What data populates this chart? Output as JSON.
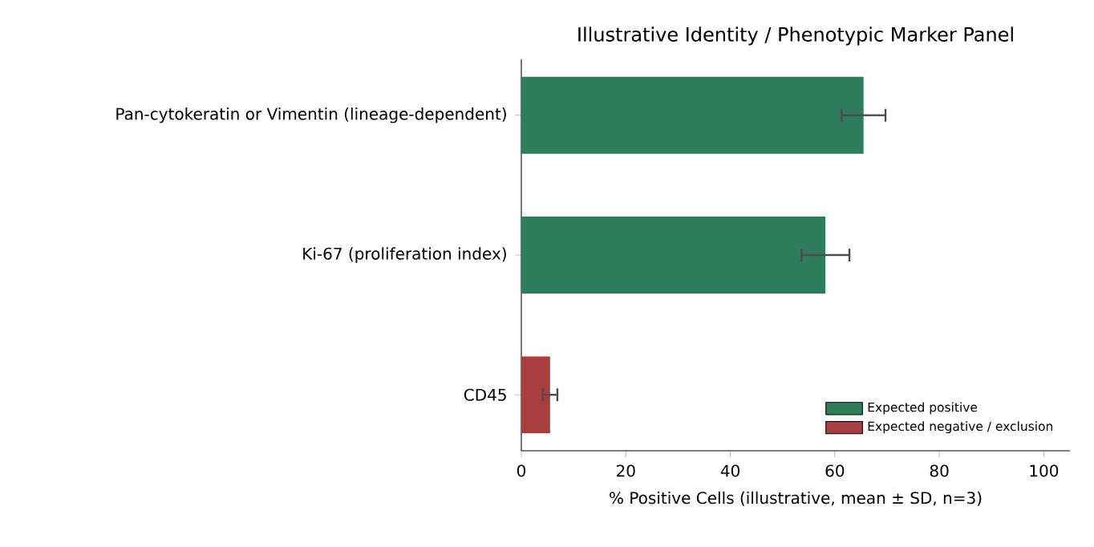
{
  "chart_data": {
    "type": "bar",
    "orientation": "horizontal",
    "title": "Illustrative Identity / Phenotypic Marker Panel",
    "xlabel": "% Positive Cells (illustrative, mean ± SD, n=3)",
    "categories": [
      "Pan-cytokeratin or Vimentin (lineage-dependent)",
      "Ki-67 (proliferation index)",
      "CD45"
    ],
    "series": [
      {
        "name": "Expected positive",
        "color": "#2e7d5b",
        "values": [
          65.5,
          58.2,
          null
        ],
        "errors": [
          4.2,
          4.6,
          null
        ]
      },
      {
        "name": "Expected negative / exclusion",
        "color": "#a83d3d",
        "values": [
          null,
          null,
          5.5
        ],
        "errors": [
          null,
          null,
          1.4
        ]
      }
    ],
    "xlim": [
      0,
      105
    ],
    "xticks": [
      0,
      20,
      40,
      60,
      80,
      100
    ],
    "grid": false,
    "legend": "bottom right"
  }
}
